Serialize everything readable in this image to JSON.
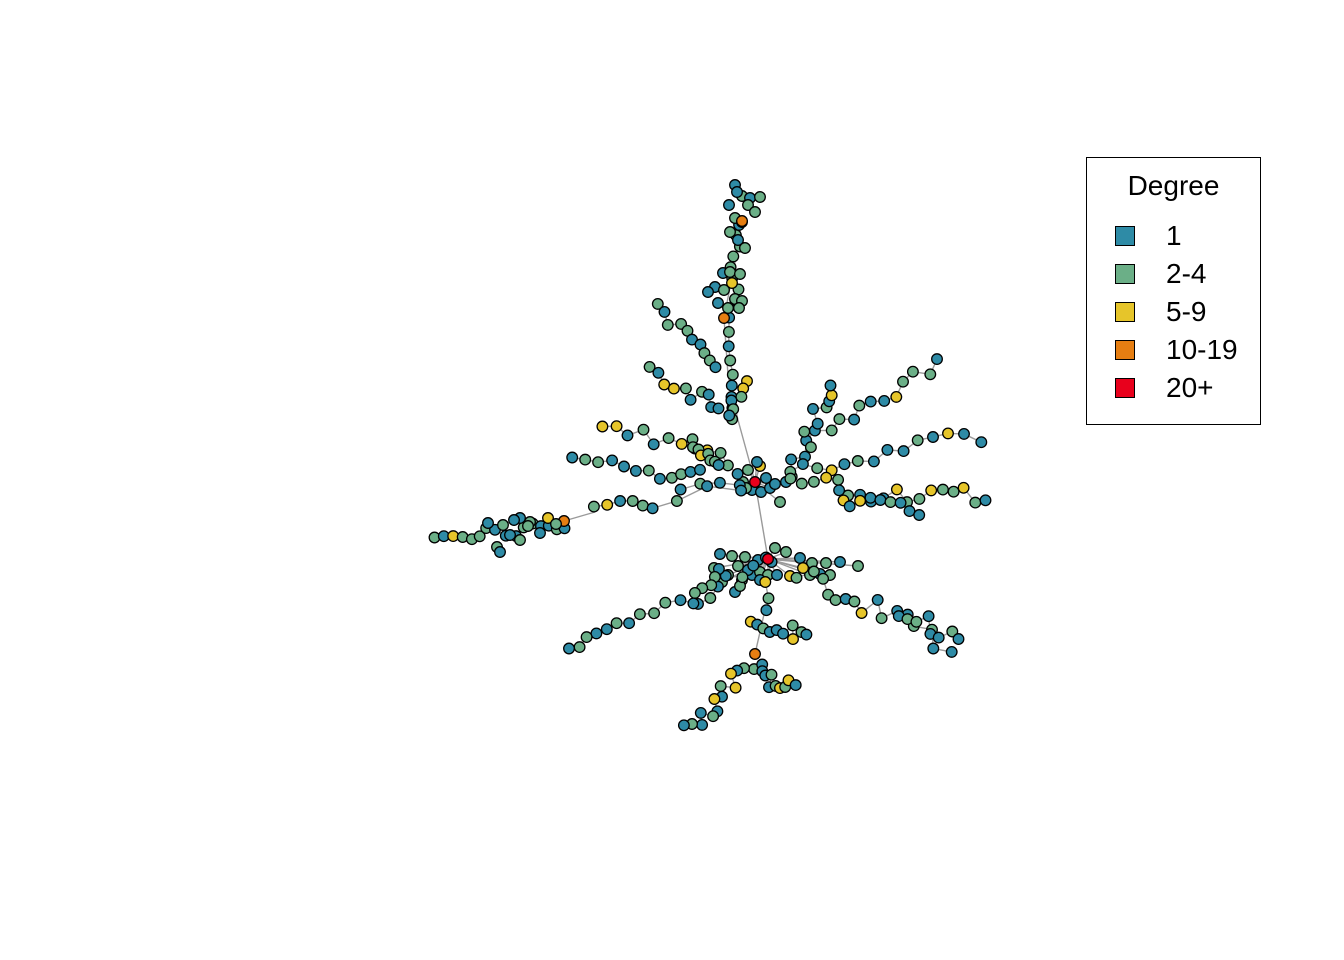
{
  "legend": {
    "title": "Degree",
    "items": [
      {
        "label": "1",
        "color": "#2E8BA6"
      },
      {
        "label": "2-4",
        "color": "#6BAF87"
      },
      {
        "label": "5-9",
        "color": "#E6C52A"
      },
      {
        "label": "10-19",
        "color": "#E67E12"
      },
      {
        "label": "20+",
        "color": "#E8001C"
      }
    ]
  },
  "graph": {
    "edge_color": "#9a9a9a",
    "node_stroke": "#000000"
  }
}
